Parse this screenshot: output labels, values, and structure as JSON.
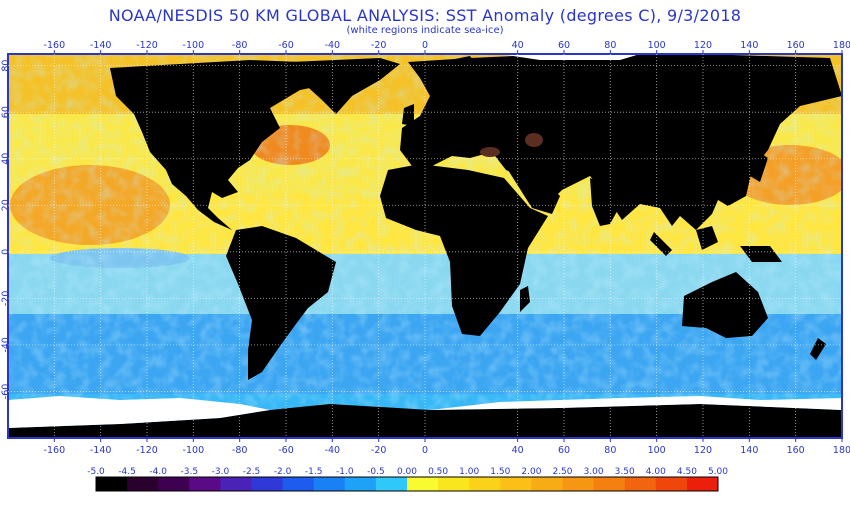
{
  "header": {
    "title": "NOAA/NESDIS 50 KM GLOBAL ANALYSIS: SST Anomaly (degrees C), 9/3/2018",
    "subtitle": "(white regions indicate sea-ice)"
  },
  "map": {
    "lon_range": [
      -180,
      180
    ],
    "lat_range": [
      -80,
      85
    ],
    "lon_ticks": [
      -160,
      -140,
      -120,
      -100,
      -80,
      -60,
      -40,
      -20,
      0,
      40,
      60,
      80,
      100,
      120,
      140,
      160,
      180
    ],
    "lat_ticks": [
      80,
      60,
      40,
      20,
      0,
      -20,
      -40,
      -60
    ],
    "colors": {
      "land": "#000000",
      "sea_ice": "#ffffff",
      "frame": "#2a36c8"
    }
  },
  "colorbar": {
    "labels": [
      "-5.0",
      "-4.5",
      "-4.0",
      "-3.5",
      "-3.0",
      "-2.5",
      "-2.0",
      "-1.5",
      "-1.0",
      "-0.5",
      "0.00",
      "0.50",
      "1.00",
      "1.50",
      "2.00",
      "2.50",
      "3.00",
      "3.50",
      "4.00",
      "4.50",
      "5.00"
    ],
    "colors": [
      "#000000",
      "#2a002e",
      "#400052",
      "#5a0a86",
      "#4a22b8",
      "#3038d8",
      "#1e5cf0",
      "#1a80f6",
      "#1ea2f8",
      "#30c8fa",
      "#fafa30",
      "#fae61e",
      "#fad21a",
      "#fac018",
      "#f8ac14",
      "#f69612",
      "#f48010",
      "#f2640e",
      "#f0460c",
      "#ec200a"
    ]
  }
}
